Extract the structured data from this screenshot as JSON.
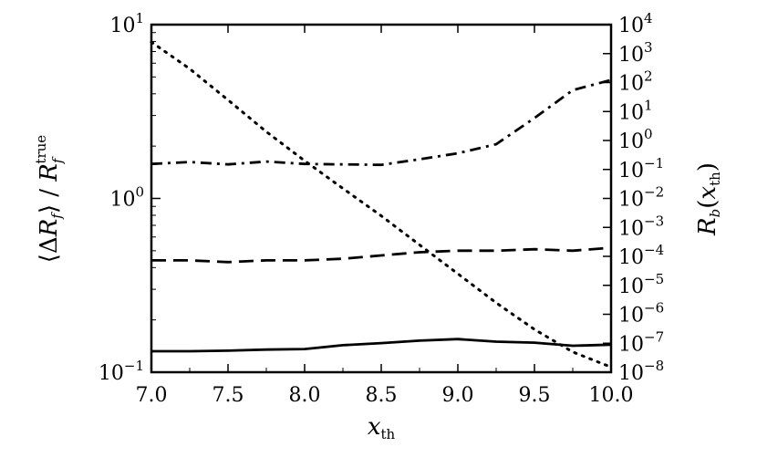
{
  "chart_data": {
    "type": "line",
    "title": "",
    "xlabel": "x_th",
    "ylabel_left": "⟨ΔR_f⟩ / R_f^true",
    "ylabel_right": "R_b(x_th)",
    "xlim": [
      7.0,
      10.0
    ],
    "ylim_left": [
      0.1,
      10
    ],
    "ylim_right": [
      1e-08,
      10000
    ],
    "yscale_left": "log",
    "yscale_right": "log",
    "grid": false,
    "legend": "none",
    "x_ticks": [
      "7.0",
      "7.5",
      "8.0",
      "8.5",
      "9.0",
      "9.5",
      "10.0"
    ],
    "y_left_ticks": [
      {
        "base": "10",
        "exp": "−1"
      },
      {
        "base": "10",
        "exp": "0"
      },
      {
        "base": "10",
        "exp": "1"
      }
    ],
    "y_right_ticks": [
      {
        "base": "10",
        "exp": "−8"
      },
      {
        "base": "10",
        "exp": "−7"
      },
      {
        "base": "10",
        "exp": "−6"
      },
      {
        "base": "10",
        "exp": "−5"
      },
      {
        "base": "10",
        "exp": "−4"
      },
      {
        "base": "10",
        "exp": "−3"
      },
      {
        "base": "10",
        "exp": "−2"
      },
      {
        "base": "10",
        "exp": "−1"
      },
      {
        "base": "10",
        "exp": "0"
      },
      {
        "base": "10",
        "exp": "1"
      },
      {
        "base": "10",
        "exp": "2"
      },
      {
        "base": "10",
        "exp": "3"
      },
      {
        "base": "10",
        "exp": "4"
      }
    ],
    "series": [
      {
        "style": "solid",
        "axis": "left",
        "x": [
          7.0,
          7.25,
          7.5,
          7.75,
          8.0,
          8.25,
          8.5,
          8.75,
          9.0,
          9.25,
          9.5,
          9.75,
          10.0
        ],
        "values": [
          0.132,
          0.132,
          0.133,
          0.135,
          0.136,
          0.143,
          0.147,
          0.152,
          0.155,
          0.15,
          0.148,
          0.142,
          0.144
        ]
      },
      {
        "style": "dashed",
        "axis": "left",
        "x": [
          7.0,
          7.25,
          7.5,
          7.75,
          8.0,
          8.25,
          8.5,
          8.75,
          9.0,
          9.25,
          9.5,
          9.75,
          10.0
        ],
        "values": [
          0.44,
          0.44,
          0.43,
          0.44,
          0.44,
          0.45,
          0.47,
          0.49,
          0.5,
          0.5,
          0.51,
          0.5,
          0.52
        ]
      },
      {
        "style": "dashdot",
        "axis": "left",
        "x": [
          7.0,
          7.25,
          7.5,
          7.75,
          8.0,
          8.25,
          8.5,
          8.75,
          9.0,
          9.25,
          9.5,
          9.75,
          10.0
        ],
        "values": [
          1.58,
          1.62,
          1.57,
          1.63,
          1.58,
          1.57,
          1.56,
          1.68,
          1.82,
          2.05,
          2.9,
          4.2,
          4.8
        ]
      },
      {
        "style": "dotted",
        "axis": "right",
        "x": [
          7.0,
          7.25,
          7.5,
          7.75,
          8.0,
          8.25,
          8.5,
          8.75,
          9.0,
          9.25,
          9.5,
          9.75,
          10.0
        ],
        "values": [
          2500,
          300,
          25,
          2,
          0.2,
          0.022,
          0.0025,
          0.00025,
          2.5e-05,
          2.5e-06,
          3e-07,
          5e-08,
          1.5e-08
        ]
      }
    ]
  }
}
